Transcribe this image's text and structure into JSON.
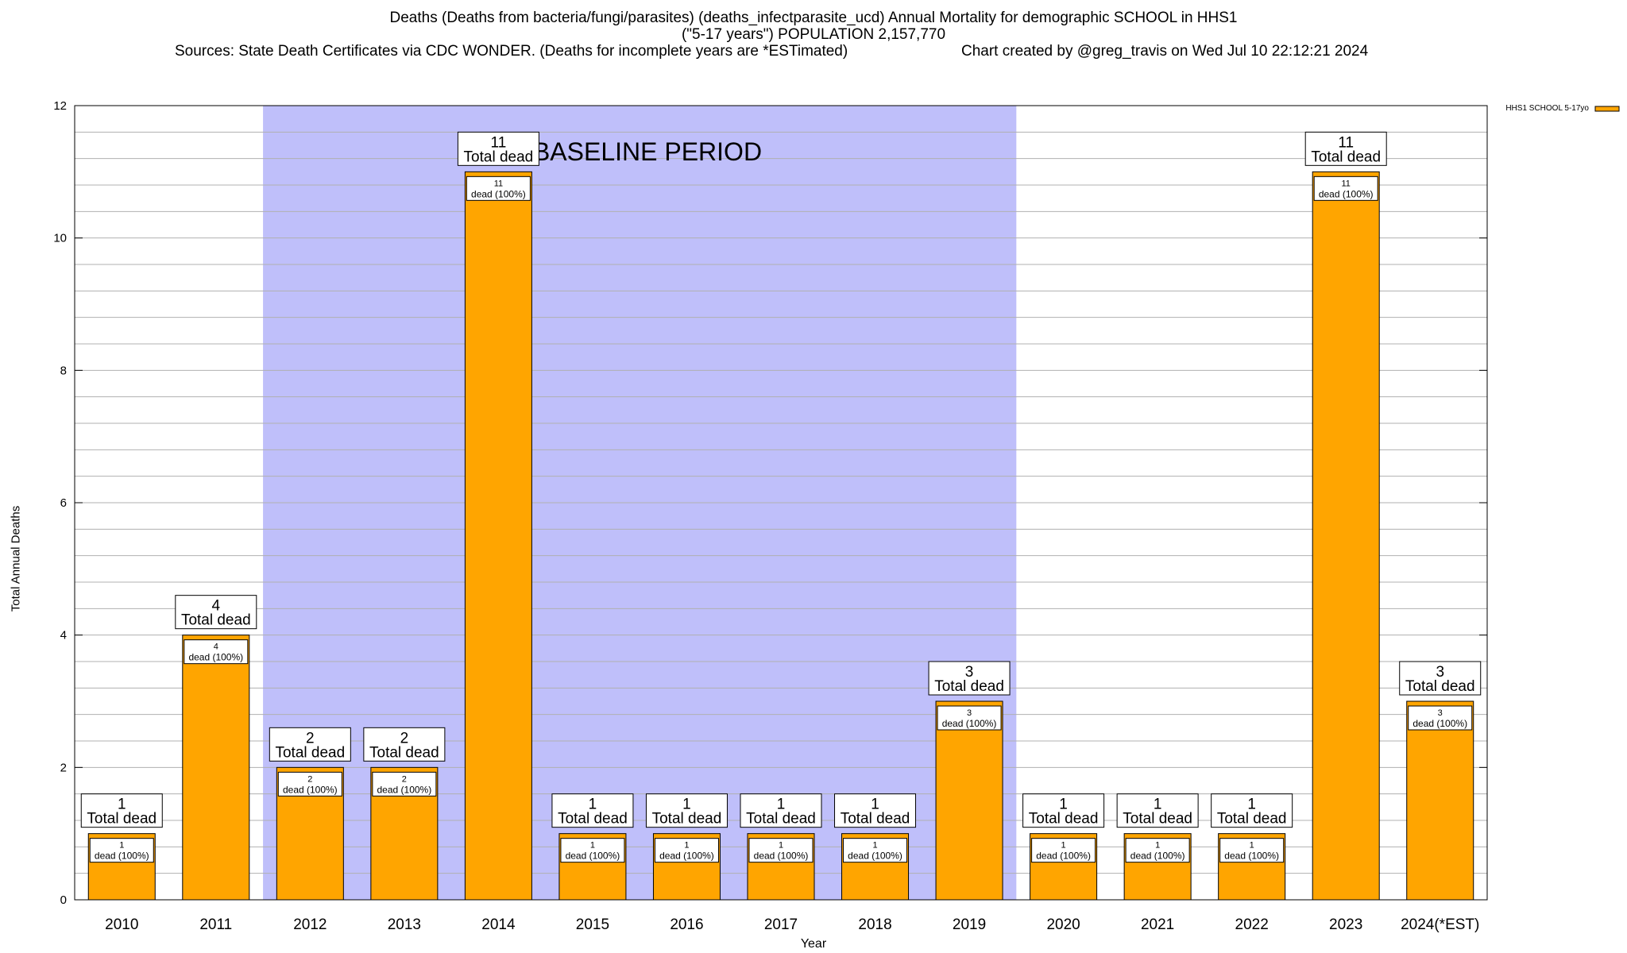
{
  "title": {
    "line1": "Deaths (Deaths from bacteria/fungi/parasites) (deaths_infectparasite_ucd) Annual Mortality for demographic SCHOOL in HHS1",
    "line2": "(\"5-17 years\") POPULATION 2,157,770",
    "line3_left": "Sources: State Death Certificates via CDC WONDER. (Deaths for incomplete years are *ESTimated)",
    "line3_right": "Chart created by @greg_travis on Wed Jul 10 22:12:21 2024"
  },
  "chart_data": {
    "type": "bar",
    "xlabel": "Year",
    "ylabel": "Total Annual Deaths",
    "categories": [
      "2010",
      "2011",
      "2012",
      "2013",
      "2014",
      "2015",
      "2016",
      "2017",
      "2018",
      "2019",
      "2020",
      "2021",
      "2022",
      "2023",
      "2024(*EST)"
    ],
    "series": [
      {
        "name": "HHS1 SCHOOL 5-17yo",
        "values": [
          1,
          4,
          2,
          2,
          11,
          1,
          1,
          1,
          1,
          3,
          1,
          1,
          1,
          11,
          3
        ]
      }
    ],
    "ylim": [
      0,
      12
    ],
    "yticks": [
      0,
      2,
      4,
      6,
      8,
      10,
      12
    ],
    "grid": true,
    "legend_position": "top-right",
    "total_label": "Total dead",
    "inner_label": "dead (100%)",
    "baseline": {
      "label": "BASELINE PERIOD",
      "from": "2012",
      "to": "2019"
    },
    "colors": {
      "bar": "#ffa500",
      "baseline": "#bfbffa",
      "grid": "#b0b0b0"
    }
  }
}
